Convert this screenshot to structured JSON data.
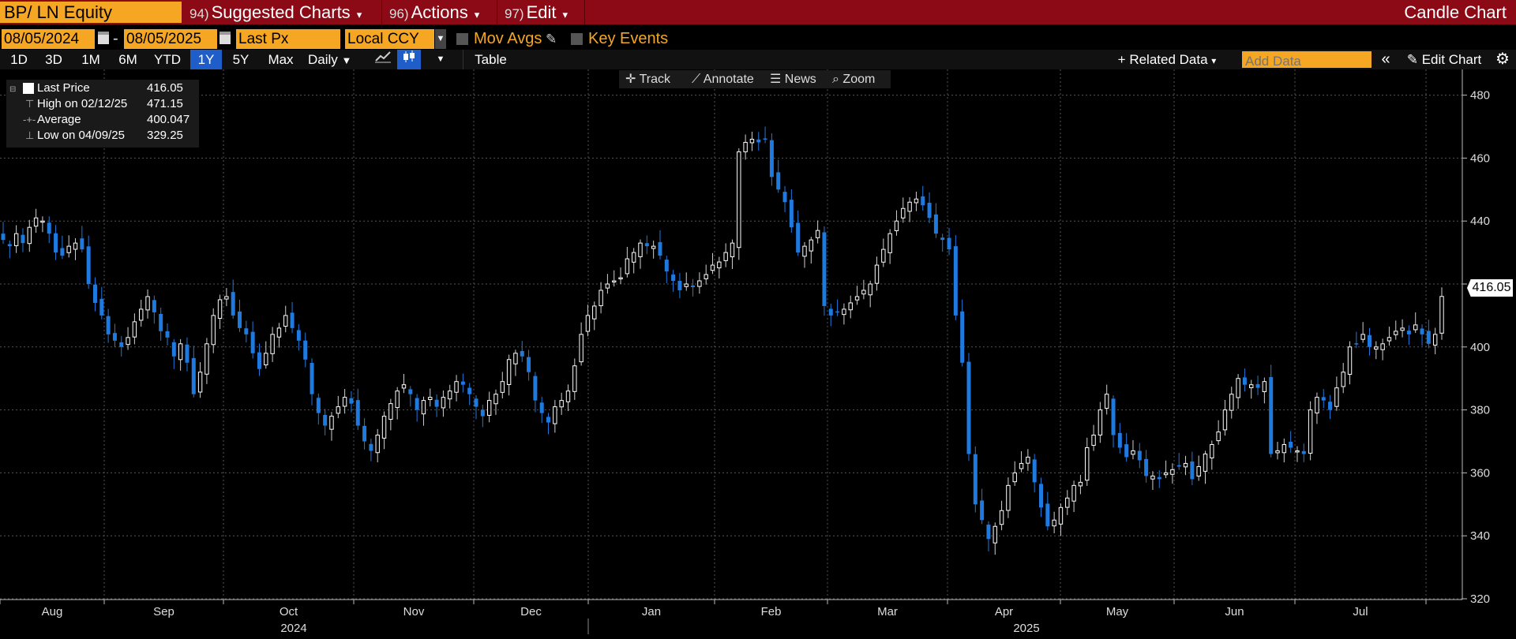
{
  "topbar": {
    "ticker": "BP/ LN Equity",
    "menus": [
      {
        "num": "94)",
        "label": "Suggested Charts"
      },
      {
        "num": "96)",
        "label": "Actions"
      },
      {
        "num": "97)",
        "label": "Edit"
      }
    ],
    "title": "Candle Chart"
  },
  "controls": {
    "start_date": "08/05/2024",
    "date_sep": "-",
    "end_date": "08/05/2025",
    "field": "Last Px",
    "currency": "Local CCY",
    "mov_avgs": "Mov Avgs",
    "key_events": "Key Events"
  },
  "ranges": {
    "buttons": [
      "1D",
      "3D",
      "1M",
      "6M",
      "YTD",
      "1Y",
      "5Y",
      "Max"
    ],
    "active": "1Y",
    "frequency": "Daily",
    "table": "Table",
    "related": "+ Related Data",
    "add_data_placeholder": "Add Data",
    "edit_chart": "Edit Chart"
  },
  "tools": {
    "track": "Track",
    "annotate": "Annotate",
    "news": "News",
    "zoom": "Zoom"
  },
  "legend": {
    "last_label": "Last Price",
    "last_value": "416.05",
    "high_label": "High on 02/12/25",
    "high_value": "471.15",
    "avg_label": "Average",
    "avg_value": "400.047",
    "low_label": "Low on 04/09/25",
    "low_value": "329.25"
  },
  "colors": {
    "up": "#ffffff",
    "down": "#1f7ae0",
    "accent": "#f5a623",
    "banner": "#8b0a16"
  },
  "chart_data": {
    "type": "candlestick",
    "y_ticks": [
      320,
      340,
      360,
      380,
      400,
      420,
      440,
      460,
      480
    ],
    "ylim": [
      315,
      485
    ],
    "months": [
      "Aug",
      "Sep",
      "Oct",
      "Nov",
      "Dec",
      "Jan",
      "Feb",
      "Mar",
      "Apr",
      "May",
      "Jun",
      "Jul"
    ],
    "years": [
      "2024",
      "2025"
    ],
    "last_price": "416.05",
    "closes": [
      434,
      432,
      436,
      433,
      438,
      441,
      440,
      436,
      430,
      429,
      432,
      433,
      431,
      420,
      414,
      410,
      404,
      402,
      400,
      403,
      408,
      412,
      416,
      411,
      405,
      403,
      397,
      401,
      395,
      385,
      392,
      401,
      410,
      415,
      416,
      410,
      406,
      404,
      398,
      393,
      398,
      404,
      406,
      410,
      406,
      402,
      396,
      385,
      379,
      375,
      378,
      381,
      384,
      382,
      375,
      370,
      367,
      372,
      378,
      382,
      386,
      388,
      385,
      380,
      383,
      384,
      381,
      384,
      386,
      389,
      388,
      385,
      381,
      378,
      383,
      385,
      389,
      396,
      398,
      397,
      392,
      383,
      379,
      376,
      381,
      383,
      386,
      394,
      404,
      410,
      413,
      418,
      420,
      421,
      422,
      428,
      430,
      433,
      432,
      432,
      429,
      424,
      421,
      418,
      420,
      419,
      421,
      423,
      426,
      427,
      430,
      433,
      462,
      465,
      466,
      465,
      466,
      454,
      450,
      446,
      438,
      430,
      432,
      434,
      437,
      413,
      410,
      411,
      412,
      414,
      416,
      418,
      420,
      426,
      431,
      436,
      440,
      444,
      446,
      447,
      445,
      441,
      436,
      434,
      431,
      410,
      395,
      366,
      350,
      345,
      339,
      343,
      348,
      356,
      360,
      363,
      365,
      357,
      349,
      343,
      345,
      349,
      352,
      356,
      357,
      368,
      372,
      380,
      385,
      372,
      368,
      365,
      367,
      364,
      359,
      359,
      358,
      360,
      361,
      362,
      363,
      358,
      362,
      366,
      369,
      373,
      380,
      385,
      390,
      388,
      388,
      387,
      389,
      366,
      367,
      369,
      368,
      367,
      366,
      380,
      384,
      383,
      380,
      387,
      392,
      400,
      401,
      404,
      400,
      400,
      401,
      403,
      405,
      406,
      404,
      407,
      404,
      401,
      404,
      416.05
    ]
  }
}
